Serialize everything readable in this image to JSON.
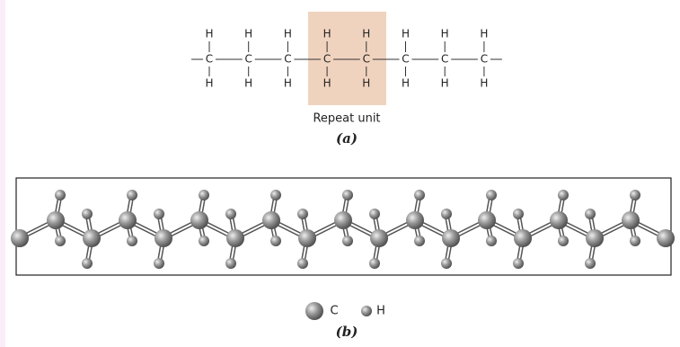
{
  "formula": {
    "atoms": [
      {
        "top": "H",
        "center": "C",
        "bottom": "H"
      },
      {
        "top": "H",
        "center": "C",
        "bottom": "H"
      },
      {
        "top": "H",
        "center": "C",
        "bottom": "H"
      },
      {
        "top": "H",
        "center": "C",
        "bottom": "H"
      },
      {
        "top": "H",
        "center": "C",
        "bottom": "H"
      },
      {
        "top": "H",
        "center": "C",
        "bottom": "H"
      },
      {
        "top": "H",
        "center": "C",
        "bottom": "H"
      },
      {
        "top": "H",
        "center": "C",
        "bottom": "H"
      }
    ]
  },
  "repeat_unit": "Repeat unit",
  "caption_a": "(a)",
  "legend": {
    "items": [
      "C",
      "H"
    ]
  },
  "caption_b": "(b)"
}
